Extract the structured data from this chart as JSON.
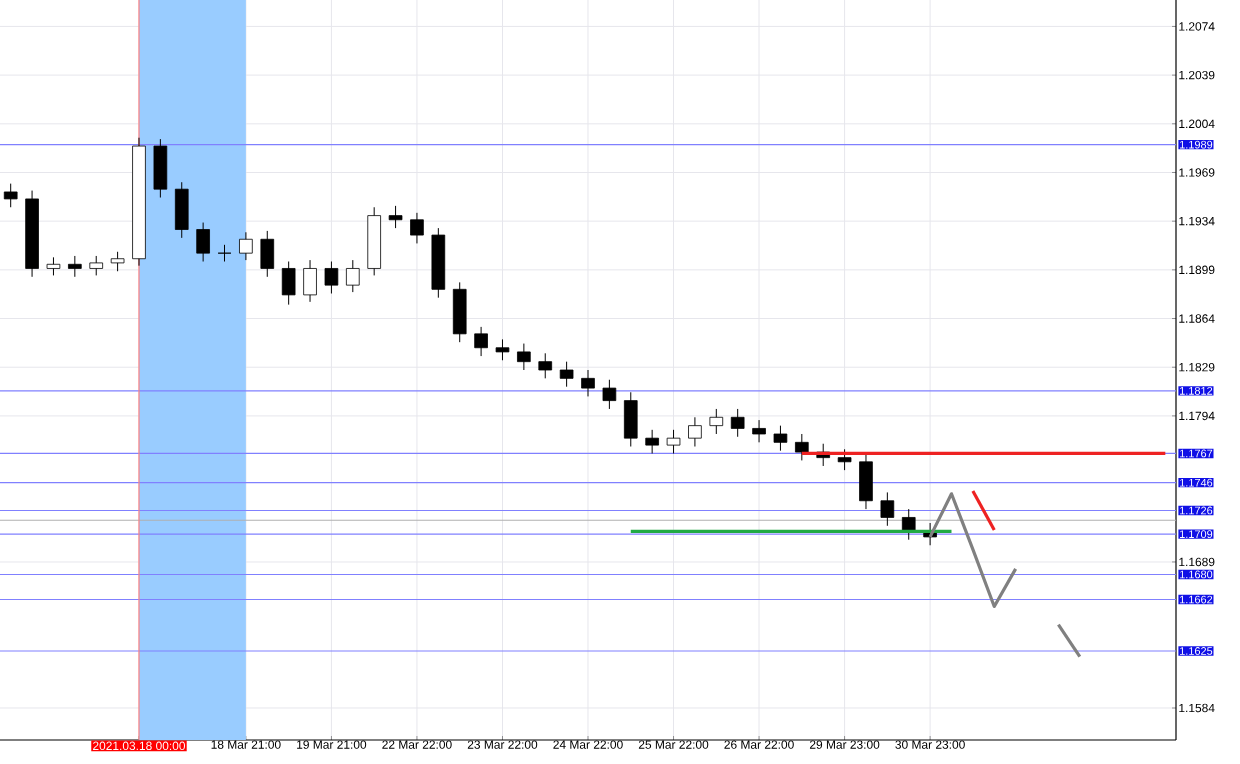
{
  "chart_data": {
    "type": "candlestick",
    "color": "#000000",
    "categories": [
      null,
      null,
      null,
      null,
      null,
      null,
      "2021.03.18 00:00",
      null,
      null,
      null,
      null,
      "18 Mar 21:00",
      null,
      null,
      null,
      "19 Mar 21:00",
      null,
      null,
      null,
      "22 Mar 22:00",
      null,
      null,
      null,
      "23 Mar 22:00",
      null,
      null,
      null,
      "24 Mar 22:00",
      null,
      null,
      null,
      "25 Mar 22:00",
      null,
      null,
      null,
      "26 Mar 22:00",
      null,
      null,
      null,
      "29 Mar 23:00",
      null,
      null,
      null,
      "30 Mar 23:00",
      null,
      null,
      null,
      null,
      null,
      null,
      null,
      null,
      null,
      null,
      null
    ],
    "ohlc": [
      [
        1.1955,
        1.1961,
        1.1944,
        1.195
      ],
      [
        1.195,
        1.1956,
        1.1894,
        1.19
      ],
      [
        1.19,
        1.1908,
        1.1895,
        1.1903
      ],
      [
        1.1903,
        1.1909,
        1.1894,
        1.19
      ],
      [
        1.19,
        1.1909,
        1.1895,
        1.1904
      ],
      [
        1.1904,
        1.1912,
        1.1898,
        1.1907
      ],
      [
        1.1907,
        1.1994,
        1.1902,
        1.1988
      ],
      [
        1.1988,
        1.1993,
        1.1951,
        1.1957
      ],
      [
        1.1957,
        1.1962,
        1.1922,
        1.1928
      ],
      [
        1.1928,
        1.1933,
        1.1905,
        1.1911
      ],
      [
        1.1911,
        1.1917,
        1.1905,
        1.1911
      ],
      [
        1.1911,
        1.1926,
        1.1906,
        1.1921
      ],
      [
        1.1921,
        1.1927,
        1.1894,
        1.19
      ],
      [
        1.19,
        1.1905,
        1.1874,
        1.1881
      ],
      [
        1.1881,
        1.1906,
        1.1876,
        1.19
      ],
      [
        1.19,
        1.1905,
        1.1882,
        1.1888
      ],
      [
        1.1888,
        1.1906,
        1.1883,
        1.19
      ],
      [
        1.19,
        1.1944,
        1.1895,
        1.1938
      ],
      [
        1.1938,
        1.1945,
        1.1929,
        1.1935
      ],
      [
        1.1935,
        1.194,
        1.1918,
        1.1924
      ],
      [
        1.1924,
        1.1929,
        1.1879,
        1.1885
      ],
      [
        1.1885,
        1.189,
        1.1847,
        1.1853
      ],
      [
        1.1853,
        1.1858,
        1.1837,
        1.1843
      ],
      [
        1.1843,
        1.1849,
        1.1834,
        1.184
      ],
      [
        1.184,
        1.1846,
        1.1827,
        1.1833
      ],
      [
        1.1833,
        1.1839,
        1.1821,
        1.1827
      ],
      [
        1.1827,
        1.1833,
        1.1815,
        1.1821
      ],
      [
        1.1821,
        1.1827,
        1.1808,
        1.1814
      ],
      [
        1.1814,
        1.182,
        1.1799,
        1.1805
      ],
      [
        1.1805,
        1.1811,
        1.1772,
        1.1778
      ],
      [
        1.1778,
        1.1784,
        1.1767,
        1.1773
      ],
      [
        1.1773,
        1.1784,
        1.1767,
        1.1778
      ],
      [
        1.1778,
        1.1793,
        1.1772,
        1.1787
      ],
      [
        1.1787,
        1.1799,
        1.1781,
        1.1793
      ],
      [
        1.1793,
        1.1799,
        1.1779,
        1.1785
      ],
      [
        1.1785,
        1.1791,
        1.1775,
        1.1781
      ],
      [
        1.1781,
        1.1787,
        1.1769,
        1.1775
      ],
      [
        1.1775,
        1.1781,
        1.1762,
        1.1768
      ],
      [
        1.1768,
        1.1774,
        1.1758,
        1.1764
      ],
      [
        1.1764,
        1.177,
        1.1755,
        1.1761
      ],
      [
        1.1761,
        1.1767,
        1.1727,
        1.1733
      ],
      [
        1.1733,
        1.1739,
        1.1715,
        1.1721
      ],
      [
        1.1721,
        1.1727,
        1.1705,
        1.1711
      ],
      [
        1.1711,
        1.1717,
        1.1701,
        1.1707
      ],
      null,
      null,
      null,
      null,
      null,
      null,
      null,
      null,
      null,
      null,
      null
    ],
    "series": [
      {
        "type": "line",
        "color": "#22aa44",
        "values": [
          null,
          null,
          null,
          null,
          null,
          null,
          null,
          null,
          null,
          null,
          null,
          null,
          null,
          null,
          null,
          null,
          null,
          null,
          null,
          null,
          null,
          null,
          null,
          null,
          null,
          null,
          null,
          null,
          null,
          1.1711,
          1.1711,
          1.1711,
          1.1711,
          1.1711,
          1.1711,
          1.1711,
          1.1711,
          1.1711,
          1.1711,
          1.1711,
          1.1711,
          1.1711,
          1.1711,
          1.1711,
          1.1711,
          null,
          null,
          null,
          null,
          null,
          null,
          null,
          null,
          null,
          null
        ]
      },
      {
        "type": "line",
        "color": "#ee2222",
        "values": [
          null,
          null,
          null,
          null,
          null,
          null,
          null,
          null,
          null,
          null,
          null,
          null,
          null,
          null,
          null,
          null,
          null,
          null,
          null,
          null,
          null,
          null,
          null,
          null,
          null,
          null,
          null,
          null,
          null,
          null,
          null,
          null,
          null,
          null,
          null,
          null,
          null,
          1.1767,
          1.1767,
          1.1767,
          1.1767,
          1.1767,
          1.1767,
          1.1767,
          1.1767,
          1.1767,
          1.1767,
          1.1767,
          1.1767,
          1.1767,
          1.1767,
          1.1767,
          1.1767,
          1.1767,
          1.1767
        ]
      },
      {
        "type": "line",
        "color": "#808080",
        "values": [
          null,
          null,
          null,
          null,
          null,
          null,
          null,
          null,
          null,
          null,
          null,
          null,
          null,
          null,
          null,
          null,
          null,
          null,
          null,
          null,
          null,
          null,
          null,
          null,
          null,
          null,
          null,
          null,
          null,
          null,
          null,
          null,
          null,
          null,
          null,
          null,
          null,
          null,
          null,
          null,
          null,
          null,
          null,
          1.1707,
          1.1738,
          1.1698,
          1.1657,
          1.1684,
          null,
          null,
          null,
          null,
          null,
          null,
          null
        ]
      },
      {
        "type": "line",
        "color": "#ee2222",
        "values": [
          null,
          null,
          null,
          null,
          null,
          null,
          null,
          null,
          null,
          null,
          null,
          null,
          null,
          null,
          null,
          null,
          null,
          null,
          null,
          null,
          null,
          null,
          null,
          null,
          null,
          null,
          null,
          null,
          null,
          null,
          null,
          null,
          null,
          null,
          null,
          null,
          null,
          null,
          null,
          null,
          null,
          null,
          null,
          null,
          null,
          1.174,
          1.1712,
          null,
          null,
          null,
          null,
          null,
          null,
          null,
          null
        ]
      },
      {
        "type": "line",
        "color": "#808080",
        "values": [
          null,
          null,
          null,
          null,
          null,
          null,
          null,
          null,
          null,
          null,
          null,
          null,
          null,
          null,
          null,
          null,
          null,
          null,
          null,
          null,
          null,
          null,
          null,
          null,
          null,
          null,
          null,
          null,
          null,
          null,
          null,
          null,
          null,
          null,
          null,
          null,
          null,
          null,
          null,
          null,
          null,
          null,
          null,
          null,
          null,
          null,
          null,
          null,
          null,
          1.1644,
          1.1621,
          null,
          null,
          null,
          null
        ]
      }
    ],
    "ylim": [
      1.1561,
      1.2093
    ],
    "yticks": [
      1.2074,
      1.2039,
      1.2004,
      1.1969,
      1.1934,
      1.1899,
      1.1864,
      1.1829,
      1.1794,
      1.1689,
      1.1584
    ],
    "grid": true,
    "bands": [
      {
        "axis": "x",
        "from": "2021.03.18 00:00",
        "to": "18 Mar 21:00",
        "color": "#99ccff"
      }
    ],
    "ref_lines": [
      {
        "axis": "y",
        "value": 1.1989,
        "label": "1.1989",
        "color": "#8080ff"
      },
      {
        "axis": "y",
        "value": 1.1812,
        "label": "1.1812",
        "color": "#8080ff"
      },
      {
        "axis": "y",
        "value": 1.1767,
        "label": "1.1767",
        "color": "#8080ff"
      },
      {
        "axis": "y",
        "value": 1.1746,
        "label": "1.1746",
        "color": "#8080ff"
      },
      {
        "axis": "y",
        "value": 1.1726,
        "label": "1.1726",
        "color": "#8080ff"
      },
      {
        "axis": "y",
        "value": 1.1719,
        "color": "#b0b0b0"
      },
      {
        "axis": "y",
        "value": 1.1709,
        "label": "1.1709",
        "color": "#8080ff"
      },
      {
        "axis": "y",
        "value": 1.168,
        "label": "1.1680",
        "color": "#8080ff"
      },
      {
        "axis": "y",
        "value": 1.1662,
        "label": "1.1662",
        "color": "#8080ff"
      },
      {
        "axis": "y",
        "value": 1.1625,
        "label": "1.1625",
        "color": "#8080ff"
      },
      {
        "axis": "x",
        "value": "2021.03.18 00:00",
        "color": "#ff8080"
      }
    ]
  }
}
